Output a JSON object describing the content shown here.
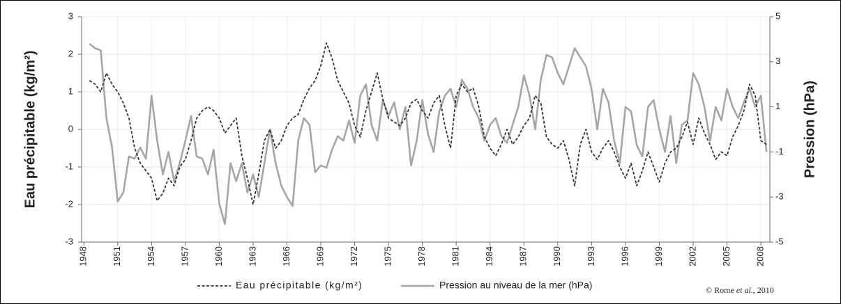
{
  "chart_data": {
    "type": "line",
    "y_label": "Eau précipitable (kg/m²)",
    "y2_label": "Pression  (hPa)",
    "credit": [
      "© Rome ",
      "et al.",
      ", 2010"
    ],
    "xlim": [
      1947.8,
      2008.8
    ],
    "xticks": [
      1948,
      1951,
      1954,
      1957,
      1960,
      1963,
      1966,
      1969,
      1972,
      1975,
      1978,
      1981,
      1984,
      1987,
      1990,
      1993,
      1996,
      1999,
      2002,
      2005,
      2008
    ],
    "ylim": [
      -3,
      3
    ],
    "yticks": [
      -3,
      -2,
      -1,
      0,
      1,
      2,
      3
    ],
    "y2lim": [
      -5,
      5
    ],
    "y2ticks": [
      -5,
      -3,
      -1,
      1,
      3,
      5
    ],
    "grid": true,
    "x": [
      1948.5,
      1949,
      1949.5,
      1950,
      1950.5,
      1951,
      1951.5,
      1952,
      1952.5,
      1953,
      1953.5,
      1954,
      1954.5,
      1955,
      1955.5,
      1956,
      1956.5,
      1957,
      1957.5,
      1958,
      1958.5,
      1959,
      1959.5,
      1960,
      1960.5,
      1961,
      1961.5,
      1962,
      1962.5,
      1963,
      1963.5,
      1964,
      1964.5,
      1965,
      1965.5,
      1966,
      1966.5,
      1967,
      1967.5,
      1968,
      1968.5,
      1969,
      1969.5,
      1970,
      1970.5,
      1971,
      1971.5,
      1972,
      1972.5,
      1973,
      1973.5,
      1974,
      1974.5,
      1975,
      1975.5,
      1976,
      1976.5,
      1977,
      1977.5,
      1978,
      1978.5,
      1979,
      1979.5,
      1980,
      1980.5,
      1981,
      1981.5,
      1982,
      1982.5,
      1983,
      1983.5,
      1984,
      1984.5,
      1985,
      1985.5,
      1986,
      1986.5,
      1987,
      1987.5,
      1988,
      1988.5,
      1989,
      1989.5,
      1990,
      1990.5,
      1991,
      1991.5,
      1992,
      1992.5,
      1993,
      1993.5,
      1994,
      1994.5,
      1995,
      1995.5,
      1996,
      1996.5,
      1997,
      1997.5,
      1998,
      1998.5,
      1999,
      1999.5,
      2000,
      2000.5,
      2001,
      2001.5,
      2002,
      2002.5,
      2003,
      2003.5,
      2004,
      2004.5,
      2005,
      2005.5,
      2006,
      2006.5,
      2007,
      2007.5,
      2008,
      2008.5
    ],
    "series": [
      {
        "name": "Eau précipitable (kg/m²)",
        "color": "#333333",
        "dash": true,
        "values": [
          1.3,
          1.2,
          1.0,
          1.5,
          1.2,
          1.0,
          0.7,
          0.3,
          -0.5,
          -0.9,
          -1.1,
          -1.3,
          -1.9,
          -1.7,
          -1.3,
          -1.5,
          -1.0,
          -0.8,
          -0.3,
          0.3,
          0.5,
          0.6,
          0.5,
          0.3,
          -0.1,
          0.1,
          0.3,
          -0.7,
          -1.3,
          -2.0,
          -1.2,
          -0.3,
          0.0,
          -0.5,
          -0.3,
          0.1,
          0.3,
          0.4,
          0.8,
          1.1,
          1.3,
          1.7,
          2.3,
          1.9,
          1.3,
          1.0,
          0.7,
          0.1,
          -0.2,
          0.5,
          1.0,
          1.5,
          0.8,
          0.3,
          0.2,
          0.1,
          0.3,
          0.7,
          0.8,
          0.5,
          0.3,
          0.7,
          0.9,
          0.1,
          -0.5,
          0.9,
          1.2,
          1.0,
          1.1,
          0.6,
          -0.2,
          -0.5,
          -0.7,
          -0.4,
          0.0,
          -0.4,
          -0.2,
          0.1,
          0.3,
          0.9,
          0.7,
          -0.2,
          -0.4,
          -0.5,
          -0.3,
          -0.8,
          -1.5,
          -0.4,
          0.0,
          -0.6,
          -0.8,
          -0.5,
          -0.3,
          -0.6,
          -1.0,
          -1.3,
          -0.9,
          -1.5,
          -1.1,
          -0.6,
          -1.0,
          -1.4,
          -0.9,
          -0.6,
          -0.5,
          -0.2,
          0.2,
          -0.4,
          0.3,
          -0.1,
          -0.4,
          -0.8,
          -0.6,
          -0.7,
          -0.2,
          0.1,
          0.5,
          1.2,
          0.9,
          -0.3,
          -0.4
        ]
      },
      {
        "name": "Pression au niveau de la mer (hPa)",
        "color": "#a6a6a6",
        "axis": "y2",
        "values": [
          3.8,
          3.6,
          3.5,
          0.5,
          -0.8,
          -3.2,
          -2.8,
          -1.2,
          -1.3,
          -0.8,
          -1.3,
          1.5,
          -0.5,
          -2.0,
          -1.0,
          -2.3,
          -1.5,
          -0.5,
          0.6,
          -1.2,
          -1.3,
          -2.0,
          -0.9,
          -3.3,
          -4.2,
          -1.5,
          -2.3,
          -1.5,
          -2.8,
          -2.0,
          -3.0,
          -1.5,
          0.0,
          -1.5,
          -2.5,
          -3.0,
          -3.4,
          -0.5,
          0.5,
          0.2,
          -1.9,
          -1.6,
          -1.7,
          -0.9,
          -0.3,
          -0.5,
          0.4,
          -0.6,
          1.5,
          2.0,
          0.2,
          -0.5,
          1.3,
          0.6,
          1.2,
          0.0,
          1.0,
          -1.6,
          -0.5,
          1.3,
          -0.2,
          -1.0,
          0.8,
          1.5,
          1.8,
          1.0,
          2.2,
          1.8,
          1.0,
          0.5,
          -0.5,
          0.2,
          0.5,
          -0.3,
          -0.6,
          0.2,
          1.0,
          2.4,
          1.5,
          0.0,
          2.2,
          3.3,
          3.2,
          2.5,
          2.0,
          2.8,
          3.6,
          3.2,
          2.8,
          1.8,
          0.0,
          1.8,
          1.2,
          -0.5,
          -1.5,
          1.0,
          0.8,
          -0.7,
          -1.2,
          1.0,
          1.3,
          0.0,
          -1.0,
          0.6,
          -1.5,
          0.2,
          0.4,
          2.5,
          2.0,
          1.0,
          -0.5,
          1.0,
          0.4,
          1.8,
          1.0,
          0.5,
          1.2,
          1.8,
          1.0,
          1.5,
          -1.0
        ]
      }
    ]
  }
}
